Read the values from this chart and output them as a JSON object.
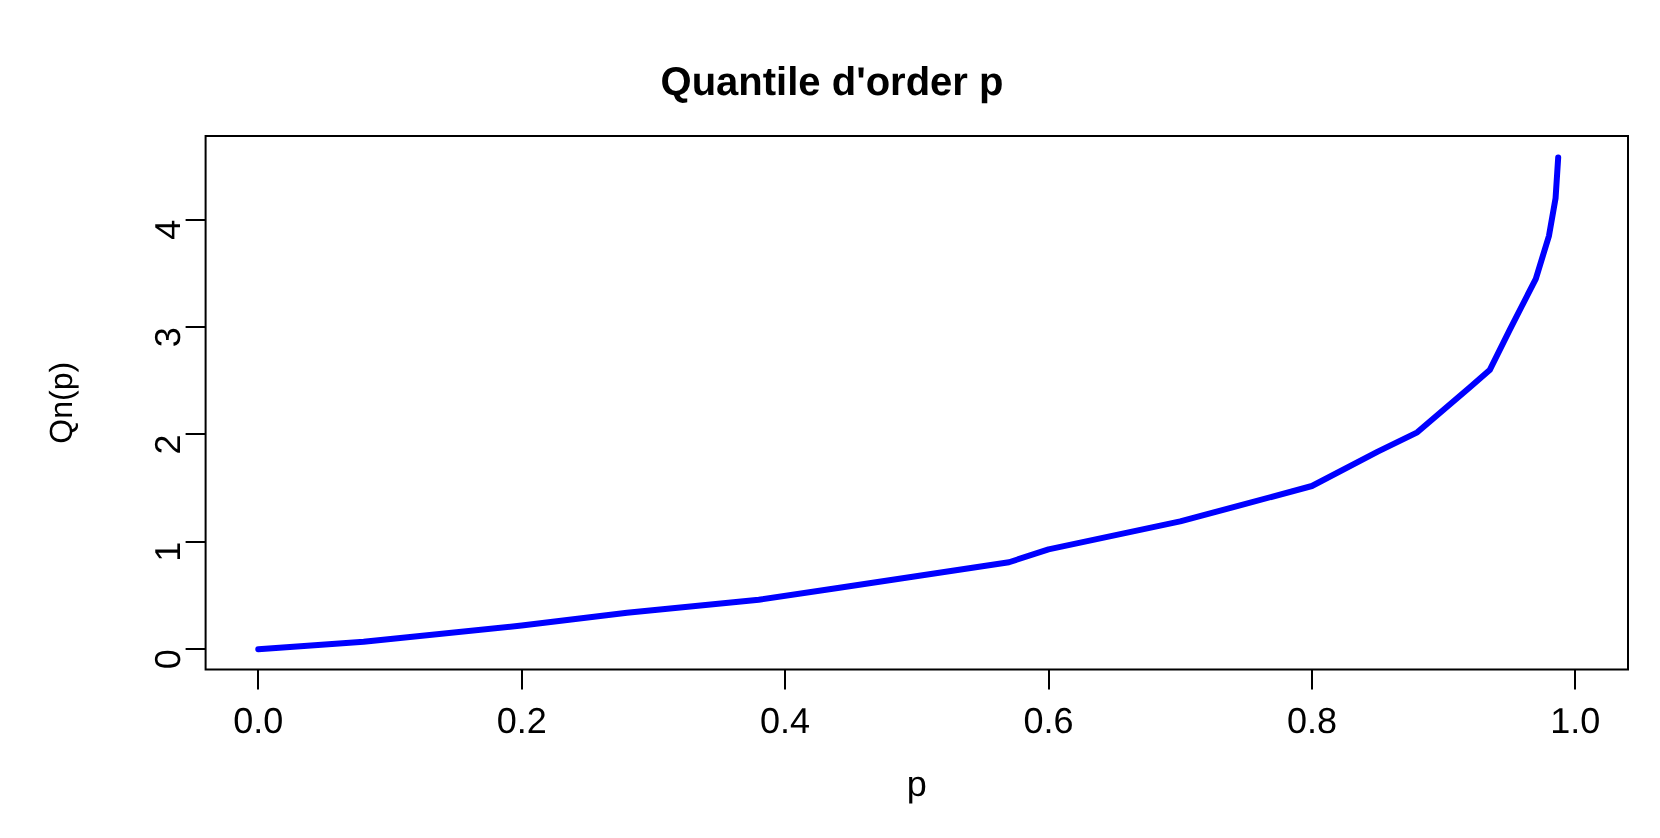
{
  "chart_data": {
    "type": "line",
    "title": "Quantile d'order p",
    "xlabel": "p",
    "ylabel": "Qn(p)",
    "x": [
      0,
      0.08,
      0.2,
      0.28,
      0.38,
      0.44,
      0.57,
      0.6,
      0.7,
      0.8,
      0.85,
      0.88,
      0.92,
      0.935,
      0.95,
      0.97,
      0.98,
      0.985,
      0.987
    ],
    "series": [
      {
        "color": "#0000ff",
        "values": [
          0,
          0.07,
          0.22,
          0.34,
          0.46,
          0.57,
          0.81,
          0.93,
          1.19,
          1.52,
          1.84,
          2.02,
          2.44,
          2.6,
          2.97,
          3.45,
          3.85,
          4.2,
          4.58
        ]
      }
    ],
    "xlim": [
      -0.04,
      1.04
    ],
    "ylim": [
      -0.19,
      4.78
    ],
    "xticks": [
      {
        "value": 0,
        "label": "0.0"
      },
      0.2,
      0.4,
      0.6,
      0.8,
      {
        "value": 1,
        "label": "1.0"
      }
    ],
    "yticks": [
      0,
      1,
      2,
      3,
      4
    ],
    "grid": false,
    "legend": false,
    "marker": "none",
    "line_style": "solid"
  }
}
